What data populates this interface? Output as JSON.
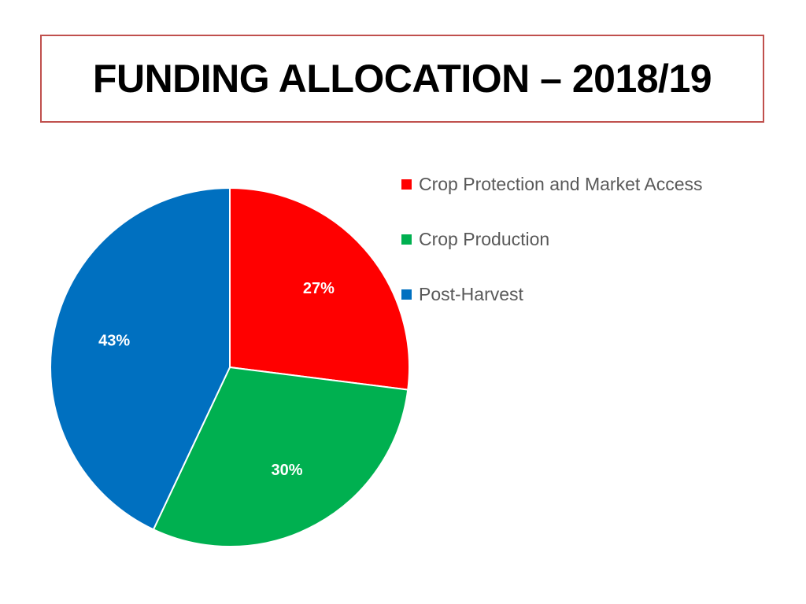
{
  "title": "FUNDING ALLOCATION – 2018/19",
  "chart_data": {
    "type": "pie",
    "title": "",
    "legend_position": "right",
    "slices": [
      {
        "name": "Crop Protection and Market Access",
        "value": 27,
        "label": "27%",
        "color": "#ff0000"
      },
      {
        "name": "Crop Production",
        "value": 30,
        "label": "30%",
        "color": "#00b050"
      },
      {
        "name": "Post-Harvest",
        "value": 43,
        "label": "43%",
        "color": "#0070c0"
      }
    ]
  }
}
